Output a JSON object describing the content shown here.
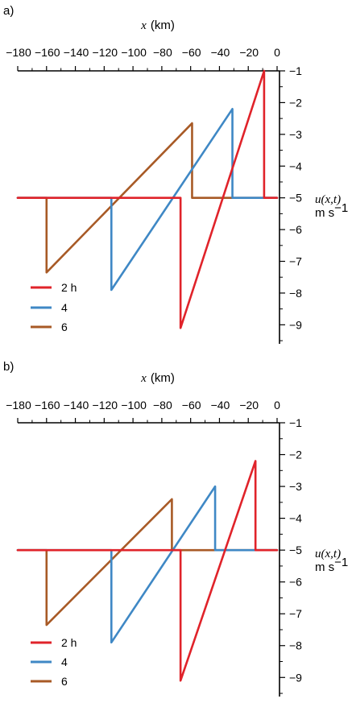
{
  "chart_data": [
    {
      "panel_label": "a)",
      "type": "line",
      "xlabel_var": "x",
      "xlabel_unit": "(km)",
      "ylabel_expr": "u(x,t)",
      "ylabel_unit_base": "m s",
      "ylabel_unit_exp": "−1",
      "xlim": [
        -180,
        0
      ],
      "ylim": [
        -9.6,
        -1
      ],
      "xticks": [
        -180,
        -160,
        -140,
        -120,
        -100,
        -80,
        -60,
        -40,
        -20,
        0
      ],
      "xtick_labels": [
        "−180",
        "−160",
        "−140",
        "−120",
        "−100",
        "−80",
        "−60",
        "−40",
        "−20",
        "0"
      ],
      "yticks": [
        -1,
        -2,
        -3,
        -4,
        -5,
        -6,
        -7,
        -8,
        -9
      ],
      "ytick_labels": [
        "−1",
        "−2",
        "−3",
        "−4",
        "−5",
        "−6",
        "−7",
        "−8",
        "−9"
      ],
      "legend_position": "bottom-left",
      "series": [
        {
          "name": "2 h",
          "color": "#e0232a",
          "x": [
            -180,
            -67,
            -67,
            -9,
            -9,
            0
          ],
          "y": [
            -5,
            -5,
            -9.1,
            -1,
            -5,
            -5
          ]
        },
        {
          "name": "4",
          "color": "#3f88c5",
          "x": [
            -180,
            -115,
            -115,
            -31,
            -31,
            0
          ],
          "y": [
            -5,
            -5,
            -7.9,
            -2.2,
            -5,
            -5
          ]
        },
        {
          "name": "6",
          "color": "#a85a26",
          "x": [
            -180,
            -160,
            -160,
            -59,
            -59,
            0
          ],
          "y": [
            -5,
            -5,
            -7.35,
            -2.65,
            -5,
            -5
          ]
        }
      ]
    },
    {
      "panel_label": "b)",
      "type": "line",
      "xlabel_var": "x",
      "xlabel_unit": "(km)",
      "ylabel_expr": "u(x,t)",
      "ylabel_unit_base": "m s",
      "ylabel_unit_exp": "−1",
      "xlim": [
        -180,
        0
      ],
      "ylim": [
        -9.6,
        -1
      ],
      "xticks": [
        -180,
        -160,
        -140,
        -120,
        -100,
        -80,
        -60,
        -40,
        -20,
        0
      ],
      "xtick_labels": [
        "−180",
        "−160",
        "−140",
        "−120",
        "−100",
        "−80",
        "−60",
        "−40",
        "−20",
        "0"
      ],
      "yticks": [
        -1,
        -2,
        -3,
        -4,
        -5,
        -6,
        -7,
        -8,
        -9
      ],
      "ytick_labels": [
        "−1",
        "−2",
        "−3",
        "−4",
        "−5",
        "−6",
        "−7",
        "−8",
        "−9"
      ],
      "legend_position": "bottom-left",
      "series": [
        {
          "name": "2 h",
          "color": "#e0232a",
          "x": [
            -180,
            -67,
            -67,
            -15,
            -15,
            0
          ],
          "y": [
            -5,
            -5,
            -9.1,
            -2.2,
            -5,
            -5
          ]
        },
        {
          "name": "4",
          "color": "#3f88c5",
          "x": [
            -180,
            -115,
            -115,
            -43,
            -43,
            0
          ],
          "y": [
            -5,
            -5,
            -7.9,
            -3,
            -5,
            -5
          ]
        },
        {
          "name": "6",
          "color": "#a85a26",
          "x": [
            -180,
            -160,
            -160,
            -73,
            -73,
            0
          ],
          "y": [
            -5,
            -5,
            -7.35,
            -3.4,
            -5,
            -5
          ]
        }
      ]
    }
  ]
}
